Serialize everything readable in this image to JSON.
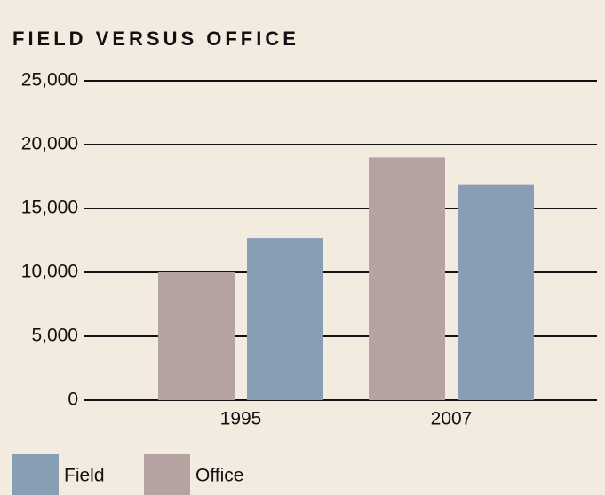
{
  "chart_data": {
    "type": "bar",
    "title": "FIELD VERSUS OFFICE",
    "categories": [
      "1995",
      "2007"
    ],
    "series": [
      {
        "name": "Office",
        "color": "#b5a3a2",
        "values": [
          10000,
          19000
        ]
      },
      {
        "name": "Field",
        "color": "#889eb5",
        "values": [
          12700,
          16900
        ]
      }
    ],
    "ylim": [
      0,
      25000
    ],
    "yticks": [
      0,
      {
        "value": 5000,
        "label": "5,000"
      },
      {
        "value": 10000,
        "label": "10,000"
      },
      {
        "value": 15000,
        "label": "15,000"
      },
      {
        "value": 20000,
        "label": "20,000"
      },
      {
        "value": 25000,
        "label": "25,000"
      }
    ],
    "grid": true
  }
}
